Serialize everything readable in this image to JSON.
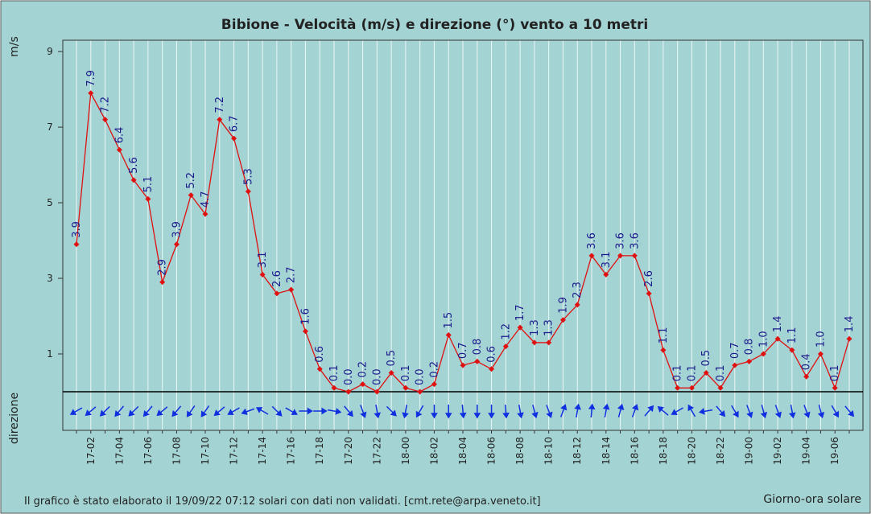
{
  "chart_data": {
    "type": "line",
    "title": "Bibione - Velocità (m/s) e direzione (°) vento a 10 metri",
    "y_label": "m/s",
    "direction_label": "direzione",
    "x_label": "Giorno-ora solare",
    "footer": "Il grafico è stato elaborato il 19/09/22 07:12 solari con dati non validati. [cmt.rete@arpa.veneto.it]",
    "categories": [
      null,
      "17-02",
      null,
      "17-04",
      null,
      "17-06",
      null,
      "17-08",
      null,
      "17-10",
      null,
      "17-12",
      null,
      "17-14",
      null,
      "17-16",
      null,
      "17-18",
      null,
      "17-20",
      null,
      "17-22",
      null,
      "18-00",
      null,
      "18-02",
      null,
      "18-04",
      null,
      "18-06",
      null,
      "18-08",
      null,
      "18-10",
      null,
      "18-12",
      null,
      "18-14",
      null,
      "18-16",
      null,
      "18-18",
      null,
      "18-20",
      null,
      "18-22",
      null,
      "19-00",
      null,
      "19-02",
      null,
      "19-04",
      null,
      "19-06",
      null
    ],
    "series": [
      {
        "color": "#e01010",
        "values": [
          3.9,
          7.9,
          7.2,
          6.4,
          5.6,
          5.1,
          2.9,
          3.9,
          5.2,
          4.7,
          7.2,
          6.7,
          5.3,
          3.1,
          2.6,
          2.7,
          1.6,
          0.6,
          0.1,
          0.0,
          0.2,
          0.0,
          0.5,
          0.1,
          0.0,
          0.2,
          1.5,
          0.7,
          0.8,
          0.6,
          1.2,
          1.7,
          1.3,
          1.3,
          1.9,
          2.3,
          3.6,
          3.1,
          3.6,
          3.6,
          2.6,
          1.1,
          0.1,
          0.1,
          0.5,
          0.1,
          0.7,
          0.8,
          1.0,
          1.4,
          1.1,
          0.4,
          1.0,
          0.1,
          1.4
        ],
        "value_labels": [
          "3.9",
          "7.9",
          "7.2",
          "6.4",
          "5.6",
          "5.1",
          "2.9",
          "3.9",
          "5.2",
          "4.7",
          "7.2",
          "6.7",
          "5.3",
          "3.1",
          "2.6",
          "2.7",
          "1.6",
          "0.6",
          "0.1",
          "0.0",
          "0.2",
          "0.0",
          "0.5",
          "0.1",
          "0.0",
          "0.2",
          "1.5",
          "0.7",
          "0.8",
          "0.6",
          "1.2",
          "1.7",
          "1.3",
          "1.3",
          "1.9",
          "2.3",
          "3.6",
          "3.1",
          "3.6",
          "3.6",
          "2.6",
          "1.1",
          "0.1",
          "0.1",
          "0.5",
          "0.1",
          "0.7",
          "0.8",
          "1.0",
          "1.4",
          "1.1",
          "0.4",
          "1.0",
          "0.1",
          "1.4"
        ]
      }
    ],
    "directions": {
      "color": "#1030e0",
      "values": [
        60,
        50,
        45,
        40,
        45,
        40,
        50,
        40,
        35,
        35,
        50,
        60,
        70,
        120,
        315,
        300,
        270,
        270,
        280,
        320,
        340,
        350,
        315,
        10,
        30,
        0,
        0,
        355,
        0,
        0,
        355,
        350,
        345,
        340,
        200,
        190,
        185,
        190,
        195,
        200,
        220,
        130,
        60,
        150,
        80,
        320,
        330,
        340,
        345,
        340,
        350,
        340,
        345,
        330,
        320
      ]
    },
    "ylim": [
      0,
      9.3
    ],
    "yticks": [
      1,
      3,
      5,
      7,
      9
    ],
    "grid": true
  }
}
